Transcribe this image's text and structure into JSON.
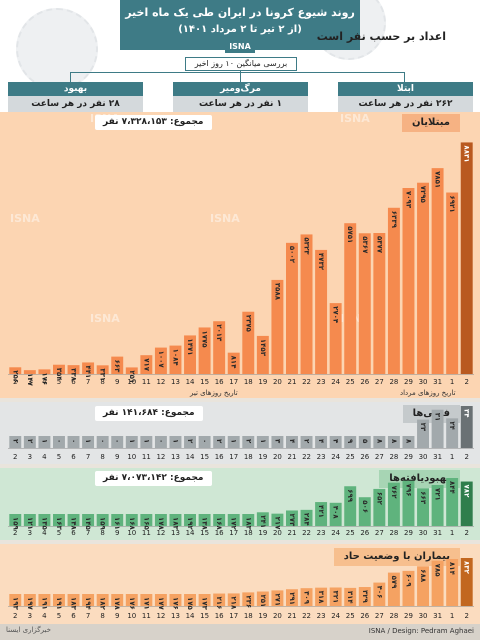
{
  "header": {
    "title": "روند شیوع کرونا در ایران طی یک ماه اخیر",
    "subtitle": "(از ۲ تیر تا ۲ مرداد ۱۴۰۱)",
    "agency": "ISNA",
    "subhead": "اعداد بر حسب نفر است",
    "avg_label": "بررسی میانگین ۱۰ روز اخیر"
  },
  "stats": [
    {
      "label": "ابتلا",
      "value": "۲۶۲ نفر در هر ساعت"
    },
    {
      "label": "مرگ‌ومیر",
      "value": "۱ نفر در هر ساعت"
    },
    {
      "label": "بهبود",
      "value": "۲۸ نفر در هر ساعت"
    }
  ],
  "axis_notes": {
    "tir": "تاریخ روزهای تیر",
    "mordad": "تاریخ روزهای مرداد"
  },
  "watermark": "ISNA",
  "footer": {
    "credit": "ISNA / Design: Pedram Aghaei",
    "seal": "خبرگزاری ایسنا"
  },
  "colors": {
    "infected_bar": "#f58a4e",
    "infected_bg": "#fcd5b2",
    "infected_last": "#b9591f",
    "deaths_bar": "#a2a9ac",
    "deaths_bg": "#e3e5e6",
    "deaths_last": "#6a7174",
    "recovered_bar": "#5fb37d",
    "recovered_bg": "#cfe7d4",
    "recovered_last": "#2f7e4c",
    "critical_bar": "#f5a262",
    "critical_bg": "#fbdcbf",
    "critical_last": "#c2671f",
    "header_teal": "#3e7b86"
  },
  "chart_data": [
    {
      "type": "bar",
      "title": "مبتلایان",
      "total": "مجموع: ۷،۳۲۸،۱۵۳ نفر",
      "categories": [
        "2",
        "3",
        "4",
        "5",
        "6",
        "7",
        "8",
        "9",
        "10",
        "11",
        "12",
        "13",
        "14",
        "15",
        "16",
        "17",
        "18",
        "19",
        "20",
        "21",
        "22",
        "23",
        "24",
        "25",
        "26",
        "27",
        "28",
        "29",
        "30",
        "31",
        "1",
        "2"
      ],
      "values": [
        256,
        147,
        176,
        354,
        338,
        441,
        331,
        663,
        251,
        717,
        1007,
        1084,
        1471,
        1775,
        2013,
        814,
        2375,
        1453,
        3588,
        5002,
        5323,
        4732,
        2704,
        5751,
        5367,
        5377,
        6339,
        7093,
        7295,
        7851,
        6921,
        8831
      ],
      "labels": [
        "۲۵۶",
        "۱۴۷",
        "۱۷۶",
        "۳۵۴",
        "۳۳۸",
        "۴۴۱",
        "۳۳۱",
        "۶۶۳",
        "۲۵۱",
        "۷۱۷",
        "۱۰۰۷",
        "۱۰۸۴",
        "۱۴۷۱",
        "۱۷۷۵",
        "۲۰۱۳",
        "۸۱۴",
        "۲۳۷۵",
        "۱۴۵۳",
        "۳۵۸۸",
        "۵۰۰۲",
        "۵۳۲۳",
        "۴۷۳۲",
        "۲۷۰۴",
        "۵۷۵۱",
        "۵۳۶۷",
        "۵۳۷۷",
        "۶۳۳۹",
        "۷۰۹۳",
        "۷۲۹۵",
        "۷۸۵۱",
        "۶۹۲۱",
        "۸۸۳۱"
      ]
    },
    {
      "type": "bar",
      "title": "فوتی‌ها",
      "total": "مجموع: ۱۴۱،۶۸۴ نفر",
      "categories": [
        "2",
        "3",
        "4",
        "5",
        "6",
        "7",
        "8",
        "9",
        "10",
        "11",
        "12",
        "13",
        "14",
        "15",
        "16",
        "17",
        "18",
        "19",
        "20",
        "21",
        "22",
        "23",
        "24",
        "25",
        "26",
        "27",
        "28",
        "29",
        "30",
        "31",
        "1",
        "2"
      ],
      "values": [
        2,
        2,
        1,
        0,
        0,
        1,
        0,
        0,
        1,
        1,
        0,
        1,
        2,
        0,
        2,
        1,
        2,
        1,
        3,
        4,
        2,
        4,
        4,
        9,
        5,
        8,
        8,
        8,
        23,
        31,
        24,
        34
      ],
      "labels": [
        "۲",
        "۲",
        "۱",
        "۰",
        "۰",
        "۱",
        "۰",
        "۰",
        "۱",
        "۱",
        "۰",
        "۱",
        "۲",
        "۰",
        "۲",
        "۱",
        "۲",
        "۱",
        "۳",
        "۴",
        "۲",
        "۴",
        "۴",
        "۹",
        "۵",
        "۸",
        "۸",
        "۸",
        "۲۳",
        "۳۱",
        "۲۴",
        "۳۴"
      ]
    },
    {
      "type": "bar",
      "title": "بهبودیافته‌ها",
      "total": "مجموع: ۷،۰۷۳،۱۴۲ نفر",
      "categories": [
        "2",
        "3",
        "4",
        "5",
        "6",
        "7",
        "8",
        "9",
        "10",
        "11",
        "12",
        "13",
        "14",
        "15",
        "16",
        "17",
        "18",
        "19",
        "20",
        "21",
        "22",
        "23",
        "24",
        "25",
        "26",
        "27",
        "28",
        "29",
        "30",
        "31",
        "1",
        "2"
      ],
      "values": [
        159,
        121,
        135,
        163,
        148,
        145,
        159,
        161,
        168,
        165,
        178,
        183,
        192,
        138,
        168,
        172,
        183,
        241,
        217,
        273,
        284,
        421,
        408,
        699,
        506,
        652,
        762,
        796,
        663,
        721,
        844,
        782
      ],
      "labels": [
        "۱۵۹",
        "۱۲۱",
        "۱۳۵",
        "۱۶۳",
        "۱۴۸",
        "۱۴۵",
        "۱۵۹",
        "۱۶۱",
        "۱۶۸",
        "۱۶۵",
        "۱۷۸",
        "۱۸۳",
        "۱۹۲",
        "۱۳۸",
        "۱۶۸",
        "۱۷۲",
        "۱۸۳",
        "۲۴۱",
        "۲۱۷",
        "۲۷۳",
        "۲۸۴",
        "۴۲۱",
        "۴۰۸",
        "۶۹۹",
        "۵۰۶",
        "۶۵۲",
        "۷۶۲",
        "۷۹۶",
        "۶۶۳",
        "۷۲۱",
        "۸۴۴",
        "۷۸۲"
      ]
    },
    {
      "type": "bar",
      "title": "بیماران با وضعیت حاد",
      "total": "",
      "categories": [
        "2",
        "3",
        "4",
        "5",
        "6",
        "7",
        "8",
        "9",
        "10",
        "11",
        "12",
        "13",
        "14",
        "15",
        "16",
        "17",
        "18",
        "19",
        "20",
        "21",
        "22",
        "23",
        "24",
        "25",
        "26",
        "27",
        "28",
        "29",
        "30",
        "31",
        "1",
        "2"
      ],
      "values": [
        193,
        197,
        191,
        191,
        183,
        194,
        182,
        178,
        176,
        171,
        177,
        176,
        175,
        173,
        216,
        218,
        236,
        251,
        271,
        291,
        309,
        318,
        321,
        314,
        329,
        406,
        579,
        609,
        688,
        785,
        814,
        832
      ],
      "labels": [
        "۱۹۳",
        "۱۹۷",
        "۱۹۱",
        "۱۹۱",
        "۱۸۳",
        "۱۹۴",
        "۱۸۲",
        "۱۷۸",
        "۱۷۶",
        "۱۷۱",
        "۱۷۷",
        "۱۷۶",
        "۱۷۵",
        "۱۷۳",
        "۲۱۶",
        "۲۱۸",
        "۲۳۶",
        "۲۵۱",
        "۲۷۱",
        "۲۹۱",
        "۳۰۹",
        "۳۱۸",
        "۳۲۱",
        "۳۱۴",
        "۳۲۹",
        "۴۰۶",
        "۵۷۹",
        "۶۰۹",
        "۶۸۸",
        "۷۸۵",
        "۸۱۴",
        "۸۳۲"
      ]
    }
  ]
}
